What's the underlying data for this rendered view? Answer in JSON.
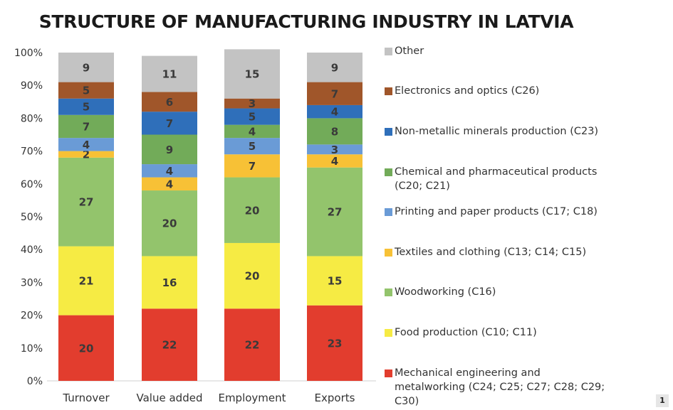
{
  "page_number": "1",
  "chart_data": {
    "type": "bar",
    "stacked": true,
    "title": "STRUCTURE OF MANUFACTURING INDUSTRY IN LATVIA",
    "xlabel": "",
    "ylabel": "",
    "ylim": [
      0,
      100
    ],
    "y_ticks": [
      "0%",
      "10%",
      "20%",
      "30%",
      "40%",
      "50%",
      "60%",
      "70%",
      "80%",
      "90%",
      "100%"
    ],
    "categories": [
      "Turnover",
      "Value added",
      "Employment",
      "Exports"
    ],
    "legend_position": "right",
    "grid": false,
    "series": [
      {
        "name": "Mechanical engineering and metalworking (C24; C25; C27; C28; C29; C30)",
        "color": "#e23d2e",
        "values": [
          20,
          22,
          22,
          23
        ],
        "labels": [
          "20",
          "22",
          "22",
          "23"
        ]
      },
      {
        "name": "Food production (C10; C11)",
        "color": "#f6eb44",
        "values": [
          21,
          16,
          20,
          15
        ],
        "labels": [
          "21",
          "16",
          "20",
          "15"
        ]
      },
      {
        "name": "Woodworking (C16)",
        "color": "#93c46c",
        "values": [
          27,
          20,
          20,
          27
        ],
        "labels": [
          "27",
          "20",
          "20",
          "27"
        ]
      },
      {
        "name": "Textiles and clothing (C13; C14; C15)",
        "color": "#f7c136",
        "values": [
          2,
          4,
          7,
          4
        ],
        "labels": [
          "2",
          "4",
          "7",
          "4"
        ]
      },
      {
        "name": "Printing and paper products (C17; C18)",
        "color": "#6a9bd6",
        "values": [
          4,
          4,
          5,
          3
        ],
        "labels": [
          "4",
          "4",
          "5",
          "3"
        ]
      },
      {
        "name": "Chemical and pharmaceutical products (C20; C21)",
        "color": "#72ab59",
        "values": [
          7,
          9,
          4,
          8
        ],
        "labels": [
          "7",
          "9",
          "4",
          "8"
        ]
      },
      {
        "name": "Non-metallic minerals production (C23)",
        "color": "#2f6fba",
        "values": [
          5,
          7,
          5,
          4
        ],
        "labels": [
          "5",
          "7",
          "5",
          "4"
        ]
      },
      {
        "name": "Electronics and optics (C26)",
        "color": "#a0562a",
        "values": [
          5,
          6,
          3,
          7
        ],
        "labels": [
          "5",
          "6",
          "3",
          "7"
        ]
      },
      {
        "name": "Other",
        "color": "#c3c3c3",
        "values": [
          9,
          11,
          15,
          9
        ],
        "labels": [
          "9",
          "11",
          "15",
          "9"
        ]
      }
    ]
  }
}
